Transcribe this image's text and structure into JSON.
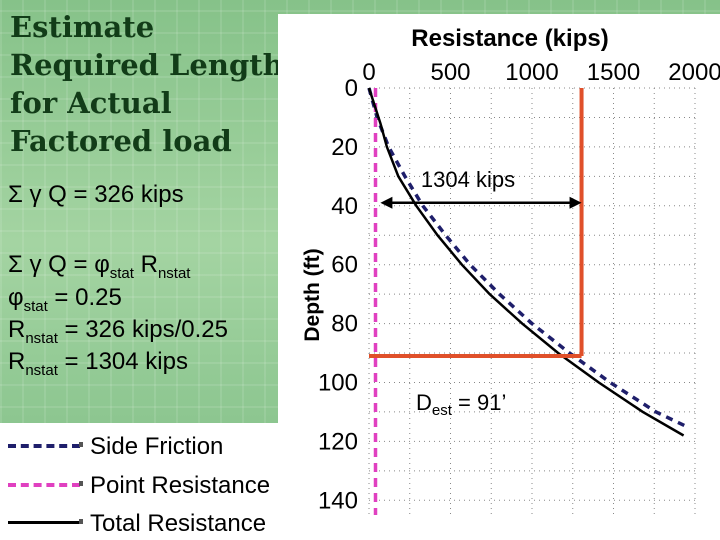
{
  "slide": {
    "title_lines": [
      "Estimate",
      "Required Length",
      "for Actual",
      "Factored load"
    ],
    "eq1": "Σ γ Q = 326 kips",
    "eq2": {
      "pre": "Σ γ Q = φ",
      "sub1": "stat",
      "mid": " R",
      "sub2": "nstat"
    },
    "eq3": {
      "pre": "φ",
      "sub": "stat",
      "post": " = 0.25"
    },
    "eq4": {
      "pre": "R",
      "sub": "nstat",
      "post": " = 326 kips/0.25"
    },
    "eq5": {
      "pre": "R",
      "sub": "nstat",
      "post": " = 1304 kips"
    }
  },
  "chart_data": {
    "type": "line",
    "title": "Resistance (kips)",
    "xlabel": "Resistance (kips)",
    "ylabel": "Depth (ft)",
    "x_ticks": [
      0,
      500,
      1000,
      1500,
      2000
    ],
    "y_ticks": [
      0,
      20,
      40,
      60,
      80,
      100,
      120,
      140
    ],
    "xlim": [
      0,
      2000
    ],
    "ylim": [
      0,
      145
    ],
    "y_inverted": true,
    "grid": "dotted",
    "series": [
      {
        "name": "Side Friction",
        "style": "dashed",
        "color": "#1f1f6b",
        "points": [
          [
            0,
            0
          ],
          [
            50,
            10
          ],
          [
            120,
            20
          ],
          [
            220,
            30
          ],
          [
            330,
            40
          ],
          [
            470,
            50
          ],
          [
            620,
            60
          ],
          [
            800,
            70
          ],
          [
            1000,
            80
          ],
          [
            1230,
            90
          ],
          [
            1480,
            100
          ],
          [
            1760,
            110
          ],
          [
            1950,
            115
          ]
        ]
      },
      {
        "name": "Point Resistance",
        "style": "dashed",
        "color": "#e040c0",
        "points": [
          [
            40,
            0
          ],
          [
            40,
            145
          ]
        ]
      },
      {
        "name": "Total Resistance",
        "style": "solid",
        "color": "#000000",
        "points": [
          [
            0,
            0
          ],
          [
            70,
            12
          ],
          [
            110,
            20
          ],
          [
            180,
            30
          ],
          [
            290,
            40
          ],
          [
            420,
            50
          ],
          [
            570,
            60
          ],
          [
            740,
            70
          ],
          [
            940,
            80
          ],
          [
            1160,
            90
          ],
          [
            1410,
            100
          ],
          [
            1680,
            110
          ],
          [
            1930,
            118
          ]
        ]
      }
    ],
    "annotations": {
      "capacity_value": 1304,
      "capacity_label": "1304 kips",
      "depth_value": 91,
      "depth_label": {
        "pre": "D",
        "sub": "est",
        "post": " = 91’"
      },
      "arrow_from_x": 70,
      "arrow_depth": 40,
      "ref_color": "#e0502a"
    },
    "legend": "bottom-left"
  }
}
